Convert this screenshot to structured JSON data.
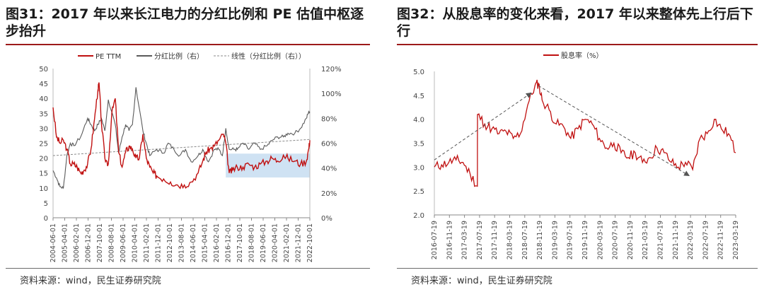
{
  "charts": [
    {
      "title": "图31：2017 年以来长江电力的分红比例和 PE 估值中枢逐步抬升",
      "source": "资料来源：wind，民生证券研究院",
      "legend": [
        "PE TTM",
        "分红比例（右）",
        "线性（分红比例（右））"
      ],
      "colors": {
        "pe": "#c01010",
        "ratio": "#5a5a5a",
        "trend": "#8a8a8a",
        "band": "#cfe2f3"
      },
      "y_left_ticks": [
        "50",
        "45",
        "40",
        "35",
        "30",
        "25",
        "20",
        "15",
        "10",
        "5",
        "0"
      ],
      "y_right_ticks": [
        "120%",
        "100%",
        "80%",
        "60%",
        "40%",
        "20%",
        "0%"
      ],
      "x_ticks": [
        "2004-06-01",
        "2005-04-01",
        "2006-02-01",
        "2006-12-01",
        "2007-10-01",
        "2008-08-01",
        "2009-06-01",
        "2010-04-01",
        "2011-02-01",
        "2011-12-01",
        "2012-10-01",
        "2013-08-01",
        "2014-06-01",
        "2015-04-01",
        "2016-02-01",
        "2016-12-01",
        "2017-10-01",
        "2018-08-01",
        "2019-06-01",
        "2020-04-01",
        "2021-02-01",
        "2021-12-01",
        "2022-10-01"
      ]
    },
    {
      "title": "图32：从股息率的变化来看，2017 年以来整体先上行后下行",
      "source": "资料来源：wind，民生证券研究院",
      "legend": [
        "股息率（%）"
      ],
      "colors": {
        "line": "#c01010",
        "arrow": "#555555"
      },
      "y_ticks": [
        "5.0",
        "4.5",
        "4.0",
        "3.5",
        "3.0",
        "2.5",
        "2.0"
      ],
      "x_ticks": [
        "2016-07-19",
        "2016-11-19",
        "2017-03-19",
        "2017-07-19",
        "2017-11-19",
        "2018-03-19",
        "2018-07-19",
        "2018-11-19",
        "2019-03-19",
        "2019-07-19",
        "2019-11-19",
        "2020-03-19",
        "2020-07-19",
        "2020-11-19",
        "2021-03-19",
        "2021-07-19",
        "2021-11-19",
        "2022-03-19",
        "2022-07-19",
        "2022-11-19",
        "2023-03-19"
      ]
    }
  ],
  "chart_data": [
    {
      "type": "line",
      "title": "2017 年以来长江电力的分红比例和 PE 估值中枢逐步抬升",
      "x_range": [
        "2004-06-01",
        "2023-01-01"
      ],
      "ylim": [
        0,
        50
      ],
      "y2lim": [
        0,
        120
      ],
      "series": [
        {
          "name": "PE TTM",
          "axis": "left",
          "x": [
            "2004-06-01",
            "2004-09-01",
            "2004-12-01",
            "2005-03-01",
            "2005-06-01",
            "2005-09-01",
            "2005-12-01",
            "2006-03-01",
            "2006-06-01",
            "2006-09-01",
            "2006-12-01",
            "2007-03-01",
            "2007-06-01",
            "2007-09-01",
            "2007-10-01",
            "2007-12-01",
            "2008-03-01",
            "2008-06-01",
            "2008-09-01",
            "2008-12-01",
            "2009-03-01",
            "2009-06-01",
            "2009-09-01",
            "2009-12-01",
            "2010-03-01",
            "2010-06-01",
            "2010-09-01",
            "2010-12-01",
            "2011-03-01",
            "2011-06-01",
            "2011-09-01",
            "2011-12-01",
            "2012-06-01",
            "2012-12-01",
            "2013-06-01",
            "2013-12-01",
            "2014-06-01",
            "2014-12-01",
            "2015-04-01",
            "2015-07-01",
            "2015-10-01",
            "2016-02-01",
            "2016-06-01",
            "2016-10-01",
            "2016-12-01",
            "2017-03-01",
            "2017-06-01",
            "2017-10-01",
            "2018-03-01",
            "2018-08-01",
            "2019-01-01",
            "2019-06-01",
            "2019-12-01",
            "2020-04-01",
            "2020-09-01",
            "2021-02-01",
            "2021-06-01",
            "2021-12-01",
            "2022-05-01",
            "2022-10-01",
            "2022-12-01",
            "2023-01-01"
          ],
          "values": [
            37,
            27,
            25,
            26,
            23,
            18,
            18,
            17,
            15,
            16,
            18,
            23,
            33,
            43,
            45,
            32,
            20,
            18,
            35,
            40,
            22,
            17,
            22,
            24,
            23,
            20,
            20,
            28,
            20,
            17,
            15,
            14,
            13,
            12,
            11,
            11,
            12,
            15,
            19,
            22,
            23,
            24,
            26,
            28,
            25,
            15,
            16,
            17,
            17,
            18,
            17,
            18,
            19,
            20,
            19,
            21,
            20,
            19,
            18,
            19,
            23,
            26
          ]
        },
        {
          "name": "分红比例（右）",
          "axis": "right",
          "x": [
            "2004-06-01",
            "2004-09-01",
            "2004-12-01",
            "2005-03-01",
            "2005-06-01",
            "2005-09-01",
            "2005-12-01",
            "2006-06-01",
            "2006-12-01",
            "2007-03-01",
            "2007-06-01",
            "2007-09-01",
            "2007-12-01",
            "2008-03-01",
            "2008-06-01",
            "2008-12-01",
            "2009-03-01",
            "2009-06-01",
            "2009-09-01",
            "2009-12-01",
            "2010-03-01",
            "2010-06-01",
            "2010-12-01",
            "2011-03-01",
            "2011-06-01",
            "2011-12-01",
            "2012-06-01",
            "2012-10-01",
            "2013-03-01",
            "2013-08-01",
            "2014-01-01",
            "2014-06-01",
            "2014-12-01",
            "2015-04-01",
            "2015-09-01",
            "2016-02-01",
            "2016-06-01",
            "2016-09-01",
            "2016-12-01",
            "2017-03-01",
            "2017-07-01",
            "2017-10-01",
            "2018-03-01",
            "2018-08-01",
            "2019-01-01",
            "2019-06-01",
            "2019-12-01",
            "2020-04-01",
            "2020-09-01",
            "2021-02-01",
            "2021-06-01",
            "2021-12-01",
            "2022-05-01",
            "2022-10-01",
            "2022-12-01",
            "2023-01-01"
          ],
          "values": [
            38,
            32,
            25,
            24,
            50,
            60,
            58,
            65,
            80,
            75,
            70,
            75,
            80,
            70,
            95,
            75,
            52,
            65,
            75,
            70,
            75,
            105,
            70,
            60,
            50,
            55,
            52,
            60,
            55,
            50,
            55,
            45,
            50,
            55,
            45,
            55,
            55,
            50,
            72,
            55,
            55,
            55,
            60,
            55,
            60,
            55,
            58,
            62,
            65,
            65,
            68,
            68,
            72,
            80,
            85,
            85
          ]
        },
        {
          "name": "线性（分红比例（右））",
          "axis": "right",
          "x": [
            "2004-06-01",
            "2023-01-01"
          ],
          "values": [
            50,
            63
          ]
        }
      ],
      "band": {
        "x": [
          "2016-12-01",
          "2023-01-01"
        ],
        "y_left": [
          13.5,
          21.5
        ]
      }
    },
    {
      "type": "line",
      "title": "从股息率的变化来看，2017 年以来整体先上行后下行",
      "x_range": [
        "2016-07-19",
        "2023-07-19"
      ],
      "ylim": [
        2.0,
        5.0
      ],
      "series": [
        {
          "name": "股息率（%）",
          "x": [
            "2016-07-19",
            "2016-09-19",
            "2016-11-19",
            "2017-01-19",
            "2017-03-19",
            "2017-05-19",
            "2017-07-19",
            "2017-07-20",
            "2017-09-19",
            "2017-11-19",
            "2018-01-19",
            "2018-03-19",
            "2018-05-19",
            "2018-07-19",
            "2018-09-19",
            "2018-11-19",
            "2018-12-19",
            "2019-01-19",
            "2019-03-19",
            "2019-05-19",
            "2019-07-19",
            "2019-09-19",
            "2019-11-19",
            "2020-01-19",
            "2020-03-19",
            "2020-05-19",
            "2020-07-19",
            "2020-09-19",
            "2020-11-19",
            "2021-01-19",
            "2021-03-19",
            "2021-05-19",
            "2021-07-19",
            "2021-09-19",
            "2021-11-19",
            "2022-01-19",
            "2022-03-19",
            "2022-05-19",
            "2022-07-19",
            "2022-09-19",
            "2022-11-19",
            "2023-01-19",
            "2023-03-19",
            "2023-05-19",
            "2023-07-19"
          ],
          "values": [
            3.0,
            3.05,
            3.1,
            3.15,
            3.1,
            2.85,
            2.6,
            4.1,
            3.9,
            3.8,
            3.7,
            3.75,
            3.6,
            3.7,
            4.3,
            4.7,
            4.75,
            4.4,
            4.2,
            3.9,
            3.85,
            3.6,
            3.8,
            4.0,
            3.9,
            3.6,
            3.4,
            3.5,
            3.3,
            3.2,
            3.3,
            3.1,
            3.2,
            3.4,
            3.3,
            3.1,
            3.0,
            3.1,
            2.95,
            3.6,
            3.7,
            4.0,
            3.8,
            3.7,
            3.3
          ]
        }
      ],
      "annotations": [
        {
          "type": "arrow",
          "from": {
            "x": "2016-07-19",
            "y": 3.15
          },
          "to": {
            "x": "2018-10-19",
            "y": 4.55
          }
        },
        {
          "type": "arrow",
          "from": {
            "x": "2018-12-19",
            "y": 4.7
          },
          "to": {
            "x": "2022-06-19",
            "y": 2.82
          }
        }
      ]
    }
  ]
}
